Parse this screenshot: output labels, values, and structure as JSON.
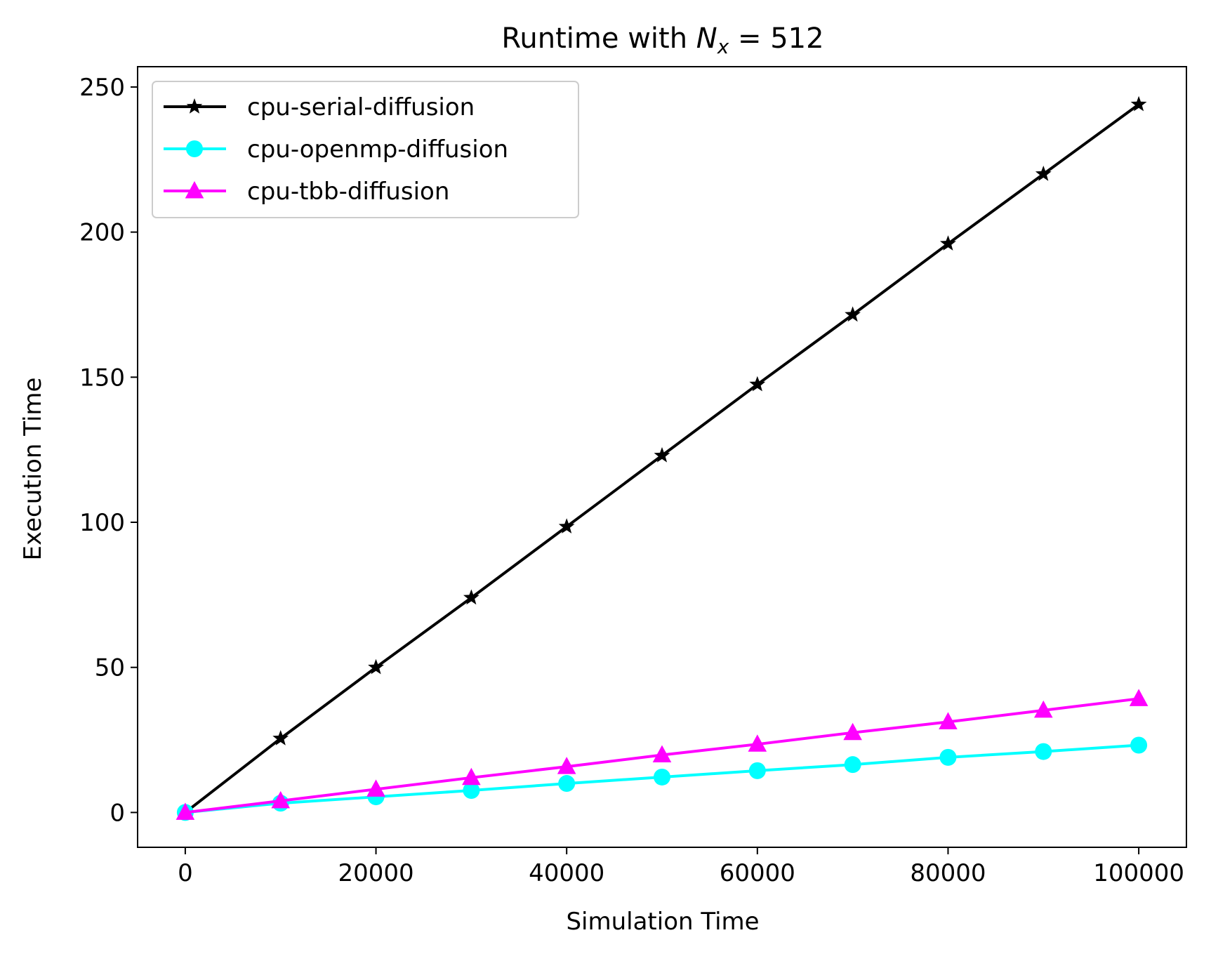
{
  "chart_data": {
    "type": "line",
    "title": "Runtime with N",
    "title_subscript": "x",
    "title_suffix": " = 512",
    "xlabel": "Simulation Time",
    "ylabel": "Execution Time",
    "xlim": [
      -5000,
      105000
    ],
    "ylim": [
      -12,
      257
    ],
    "xticks": [
      0,
      20000,
      40000,
      60000,
      80000,
      100000
    ],
    "yticks": [
      0,
      50,
      100,
      150,
      200,
      250
    ],
    "grid": false,
    "legend_position": "upper-left",
    "x": [
      0,
      10000,
      20000,
      30000,
      40000,
      50000,
      60000,
      70000,
      80000,
      90000,
      100000
    ],
    "series": [
      {
        "name": "cpu-serial-diffusion",
        "color": "#000000",
        "marker": "star",
        "values": [
          0,
          25.5,
          50,
          74,
          98.5,
          123,
          147.5,
          171.5,
          196,
          220,
          244
        ]
      },
      {
        "name": "cpu-openmp-diffusion",
        "color": "#00ffff",
        "marker": "circle",
        "values": [
          0,
          3.2,
          5.4,
          7.6,
          10,
          12.2,
          14.4,
          16.5,
          19,
          21,
          23.2
        ]
      },
      {
        "name": "cpu-tbb-diffusion",
        "color": "#ff00ff",
        "marker": "triangle",
        "values": [
          0,
          4,
          8,
          12,
          15.8,
          19.8,
          23.5,
          27.5,
          31.2,
          35.2,
          39.2
        ]
      }
    ]
  }
}
